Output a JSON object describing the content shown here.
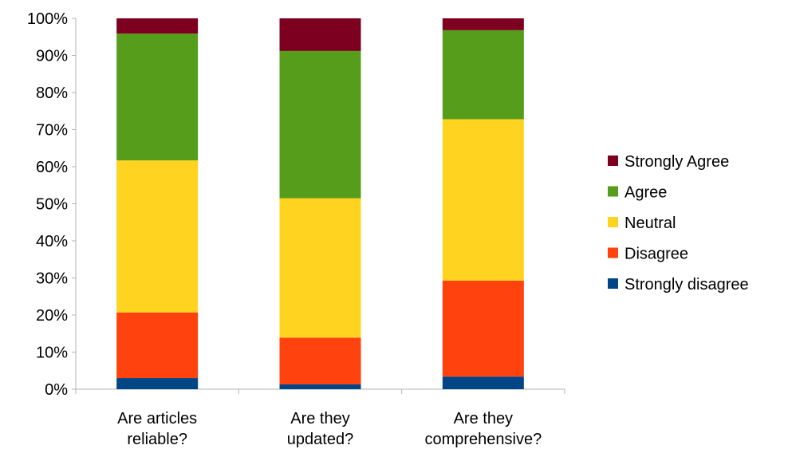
{
  "chart_data": {
    "type": "bar",
    "stacked": true,
    "percent_stacked": true,
    "categories": [
      [
        "Are articles",
        "reliable?"
      ],
      [
        "Are they",
        "updated?"
      ],
      [
        "Are they",
        "comprehensive?"
      ]
    ],
    "series": [
      {
        "name": "Strongly disagree",
        "color": "#004586",
        "values": [
          3,
          1.3,
          3.4
        ]
      },
      {
        "name": "Disagree",
        "color": "#ff420e",
        "values": [
          17.7,
          12.6,
          25.9
        ]
      },
      {
        "name": "Neutral",
        "color": "#ffd320",
        "values": [
          41,
          37.6,
          43.5
        ]
      },
      {
        "name": "Agree",
        "color": "#579d1c",
        "values": [
          34.2,
          39.7,
          24
        ]
      },
      {
        "name": "Strongly Agree",
        "color": "#7e0021",
        "values": [
          4.1,
          8.8,
          3.2
        ]
      }
    ],
    "ylim": [
      0,
      100
    ],
    "yticks": [
      "0%",
      "10%",
      "20%",
      "30%",
      "40%",
      "50%",
      "60%",
      "70%",
      "80%",
      "90%",
      "100%"
    ],
    "grid": false,
    "legend": {
      "position": "right",
      "entries": [
        "Strongly Agree",
        "Agree",
        "Neutral",
        "Disagree",
        "Strongly disagree"
      ]
    }
  }
}
